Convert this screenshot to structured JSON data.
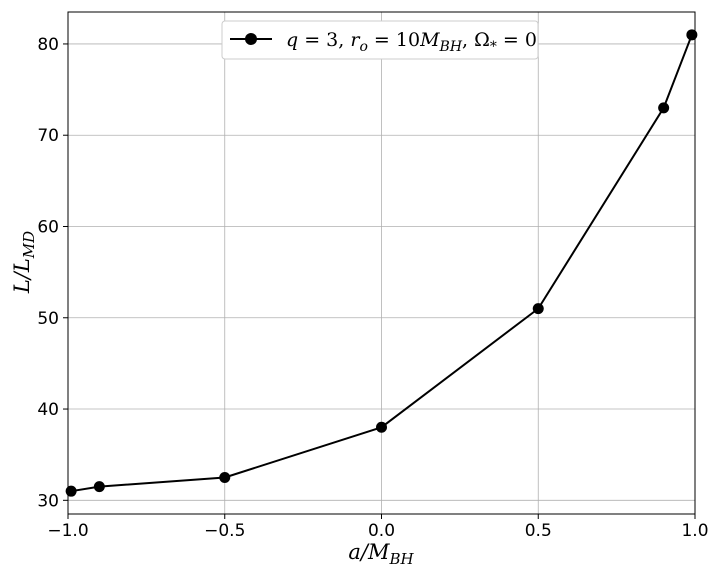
{
  "chart_data": {
    "type": "line",
    "title": "",
    "xlabel": "a/M_BH",
    "ylabel": "L/L_MD",
    "xlim": [
      -1.0,
      1.0
    ],
    "ylim": [
      28.5,
      83.5
    ],
    "xticks": [
      -1.0,
      -0.5,
      0.0,
      0.5,
      1.0
    ],
    "xtick_labels": [
      "−1.0",
      "−0.5",
      "0.0",
      "0.5",
      "1.0"
    ],
    "yticks": [
      30,
      40,
      50,
      60,
      70,
      80
    ],
    "ytick_labels": [
      "30",
      "40",
      "50",
      "60",
      "70",
      "80"
    ],
    "grid": true,
    "legend_position": "top-center",
    "series": [
      {
        "name": "q = 3, r_o = 10M_BH, Ω* = 0",
        "color": "#000000",
        "marker": "circle",
        "x": [
          -0.99,
          -0.9,
          -0.5,
          0.0,
          0.5,
          0.9,
          0.99
        ],
        "y": [
          31.0,
          31.5,
          32.5,
          38.0,
          51.0,
          73.0,
          81.0
        ]
      }
    ]
  }
}
